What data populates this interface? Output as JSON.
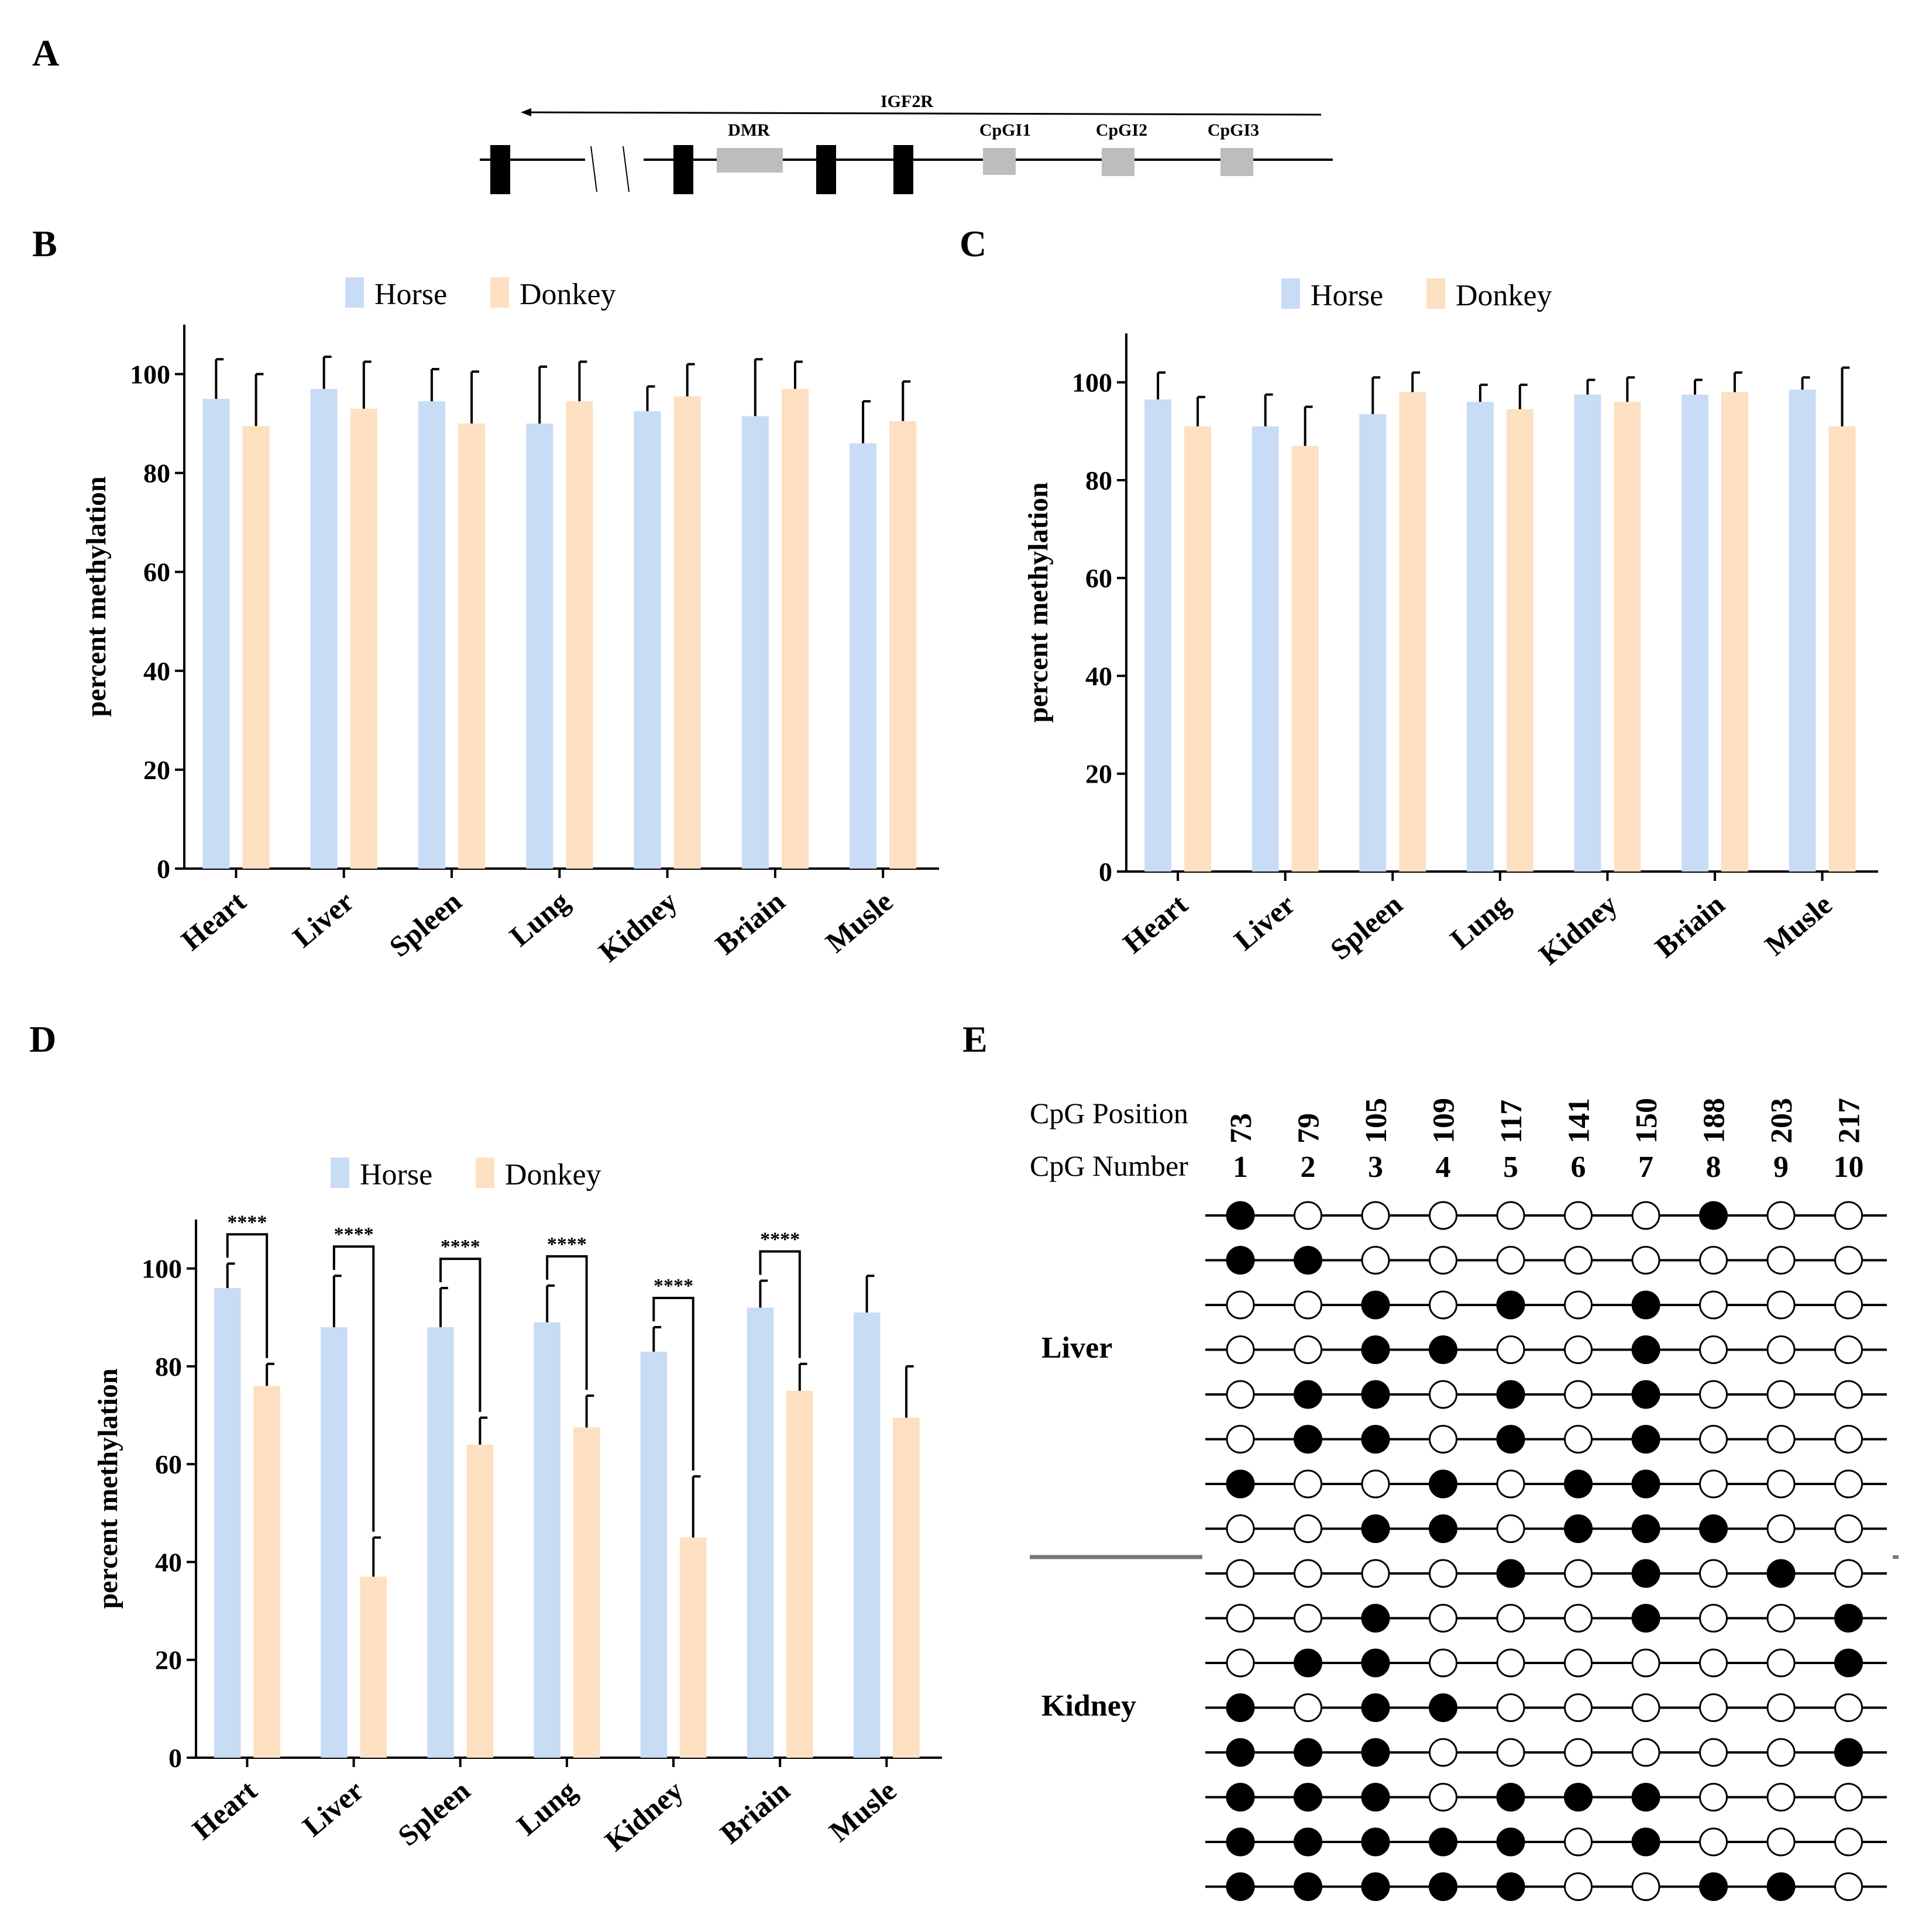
{
  "panels": {
    "A": "A",
    "B": "B",
    "C": "C",
    "D": "D",
    "E": "E"
  },
  "gene_map": {
    "gene": "IGF2R",
    "regions": [
      "DMR",
      "CpGI1",
      "CpGI2",
      "CpGI3"
    ]
  },
  "legend": {
    "horse": "Horse",
    "donkey": "Donkey"
  },
  "colors": {
    "horse": "#c9dcf5",
    "donkey": "#fde0c1",
    "axis": "#000000"
  },
  "chart_data": [
    {
      "panel": "B",
      "type": "bar",
      "categories": [
        "Heart",
        "Liver",
        "Spleen",
        "Lung",
        "Kidney",
        "Briain",
        "Musle"
      ],
      "ylabel": "percent methylation",
      "ylim": [
        0,
        110
      ],
      "yticks": [
        "0",
        "20",
        "40",
        "60",
        "80",
        "100"
      ],
      "series": [
        {
          "name": "Horse",
          "values": [
            95,
            97,
            94.5,
            90,
            92.5,
            91.5,
            86
          ],
          "errors": [
            8,
            6.5,
            6.5,
            11.5,
            5,
            11.5,
            8.5
          ]
        },
        {
          "name": "Donkey",
          "values": [
            89.5,
            93,
            90,
            94.5,
            95.5,
            97,
            90.5
          ],
          "errors": [
            10.5,
            9.5,
            10.5,
            8,
            6.5,
            5.5,
            8
          ]
        }
      ],
      "significance": []
    },
    {
      "panel": "C",
      "type": "bar",
      "categories": [
        "Heart",
        "Liver",
        "Spleen",
        "Lung",
        "Kidney",
        "Briain",
        "Musle"
      ],
      "ylabel": "percent methylation",
      "ylim": [
        0,
        110
      ],
      "yticks": [
        "0",
        "20",
        "40",
        "60",
        "80",
        "100"
      ],
      "series": [
        {
          "name": "Horse",
          "values": [
            96.5,
            91,
            93.5,
            96,
            97.5,
            97.5,
            98.5
          ],
          "errors": [
            5.5,
            6.5,
            7.5,
            3.5,
            3,
            3,
            2.5
          ]
        },
        {
          "name": "Donkey",
          "values": [
            91,
            87,
            98,
            94.5,
            96,
            98,
            91
          ],
          "errors": [
            6,
            8,
            4,
            5,
            5,
            4,
            12
          ]
        }
      ],
      "significance": []
    },
    {
      "panel": "D",
      "type": "bar",
      "categories": [
        "Heart",
        "Liver",
        "Spleen",
        "Lung",
        "Kidney",
        "Briain",
        "Musle"
      ],
      "ylabel": "percent methylation",
      "ylim": [
        0,
        110
      ],
      "yticks": [
        "0",
        "20",
        "40",
        "60",
        "80",
        "100"
      ],
      "series": [
        {
          "name": "Horse",
          "values": [
            96,
            88,
            88,
            89,
            83,
            92,
            91
          ],
          "errors": [
            5,
            10.5,
            8,
            7.5,
            5,
            5.5,
            7.5
          ]
        },
        {
          "name": "Donkey",
          "values": [
            76,
            37,
            64,
            67.5,
            45,
            75,
            69.5
          ],
          "errors": [
            4.5,
            8,
            5.5,
            6.5,
            12.5,
            5.5,
            10.5
          ]
        }
      ],
      "significance": [
        {
          "category": "Heart",
          "label": "****"
        },
        {
          "category": "Liver",
          "label": "****"
        },
        {
          "category": "Spleen",
          "label": "****"
        },
        {
          "category": "Lung",
          "label": "****"
        },
        {
          "category": "Kidney",
          "label": "****"
        },
        {
          "category": "Briain",
          "label": "****"
        }
      ]
    },
    {
      "panel": "E",
      "type": "table",
      "position_label": "CpG Position",
      "number_label": "CpG Number",
      "positions": [
        "73",
        "79",
        "105",
        "109",
        "117",
        "141",
        "150",
        "188",
        "203",
        "217"
      ],
      "numbers": [
        "1",
        "2",
        "3",
        "4",
        "5",
        "6",
        "7",
        "8",
        "9",
        "10"
      ],
      "groups": [
        {
          "tissue": "Liver",
          "rows": [
            [
              1,
              0,
              0,
              0,
              0,
              0,
              0,
              1,
              0,
              0
            ],
            [
              1,
              1,
              0,
              0,
              0,
              0,
              0,
              0,
              0,
              0
            ],
            [
              0,
              0,
              1,
              0,
              1,
              0,
              1,
              0,
              0,
              0
            ],
            [
              0,
              0,
              1,
              1,
              0,
              0,
              1,
              0,
              0,
              0
            ],
            [
              0,
              1,
              1,
              0,
              1,
              0,
              1,
              0,
              0,
              0
            ],
            [
              0,
              1,
              1,
              0,
              1,
              0,
              1,
              0,
              0,
              0
            ],
            [
              1,
              0,
              0,
              1,
              0,
              1,
              1,
              0,
              0,
              0
            ],
            [
              0,
              0,
              1,
              1,
              0,
              1,
              1,
              1,
              0,
              0
            ]
          ]
        },
        {
          "tissue": "Kidney",
          "rows": [
            [
              0,
              0,
              0,
              0,
              1,
              0,
              1,
              0,
              1,
              0
            ],
            [
              0,
              0,
              1,
              0,
              0,
              0,
              1,
              0,
              0,
              1
            ],
            [
              0,
              1,
              1,
              0,
              0,
              0,
              0,
              0,
              0,
              1
            ],
            [
              1,
              0,
              1,
              1,
              0,
              0,
              0,
              0,
              0,
              0
            ],
            [
              1,
              1,
              1,
              0,
              0,
              0,
              0,
              0,
              0,
              1
            ],
            [
              1,
              1,
              1,
              0,
              1,
              1,
              1,
              0,
              0,
              0
            ],
            [
              1,
              1,
              1,
              1,
              1,
              0,
              1,
              0,
              0,
              0
            ],
            [
              1,
              1,
              1,
              1,
              1,
              0,
              0,
              1,
              1,
              0
            ]
          ]
        }
      ]
    }
  ]
}
